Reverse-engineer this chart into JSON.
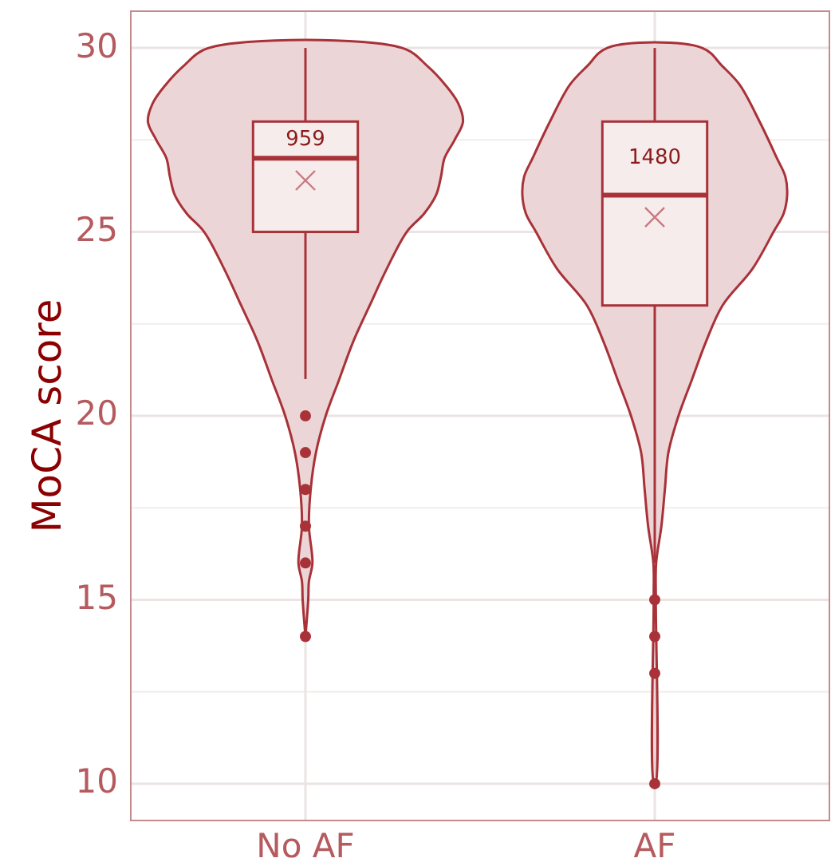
{
  "chart_data": {
    "type": "box",
    "ylabel": "MoCA score",
    "categories": [
      "No AF",
      "AF"
    ],
    "color": "#a83238",
    "boxes": [
      {
        "low": 21,
        "q1": 25,
        "median": 27,
        "q3": 28,
        "high": 30,
        "mean": 26.4,
        "outliers": [
          20,
          19,
          18,
          17,
          16,
          14
        ]
      },
      {
        "low": 16,
        "q1": 23,
        "median": 26,
        "q3": 28,
        "high": 30,
        "mean": 25.4,
        "outliers": [
          15,
          14,
          13,
          10
        ]
      }
    ],
    "annotations": [
      "959",
      "1480"
    ],
    "ylim": [
      9,
      31
    ],
    "yticks": [
      10,
      15,
      20,
      25,
      30
    ],
    "grid": true
  }
}
